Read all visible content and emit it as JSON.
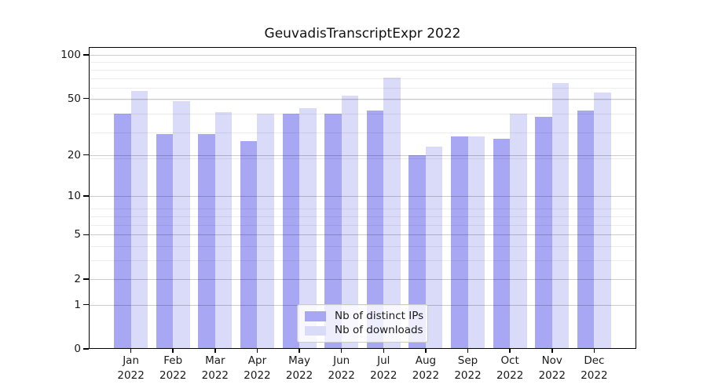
{
  "title": "GeuvadisTranscriptExpr 2022",
  "colors": {
    "ips": "#a7a7f4",
    "downloads": "#dadaf9",
    "axis": "#000000",
    "grid_major": "rgba(0,0,0,0.20)",
    "grid_minor": "rgba(0,0,0,0.07)"
  },
  "legend": {
    "items": [
      {
        "label": "Nb of distinct IPs",
        "series": "ips"
      },
      {
        "label": "Nb of downloads",
        "series": "downloads"
      }
    ]
  },
  "chart_data": {
    "type": "bar",
    "title": "GeuvadisTranscriptExpr 2022",
    "scale": "log1p",
    "grid": true,
    "legend_position": "lower center",
    "categories": [
      "Jan",
      "Feb",
      "Mar",
      "Apr",
      "May",
      "Jun",
      "Jul",
      "Aug",
      "Sep",
      "Oct",
      "Nov",
      "Dec"
    ],
    "year": "2022",
    "series": [
      {
        "name": "Nb of distinct IPs",
        "key": "ips",
        "values": [
          39,
          28,
          28,
          25,
          39,
          39,
          41,
          20,
          27,
          26,
          37,
          41
        ]
      },
      {
        "name": "Nb of downloads",
        "key": "downloads",
        "values": [
          56,
          48,
          40,
          39,
          43,
          52,
          70,
          23,
          27,
          39,
          64,
          55
        ]
      }
    ],
    "xlabel": "",
    "ylabel": "",
    "ylim": [
      0,
      100
    ],
    "y_ticks": [
      0,
      1,
      2,
      5,
      10,
      20,
      50,
      100
    ],
    "y_minor_gridlines": [
      3,
      4,
      6,
      7,
      8,
      19,
      29,
      39,
      49,
      59,
      69,
      79,
      89
    ]
  }
}
